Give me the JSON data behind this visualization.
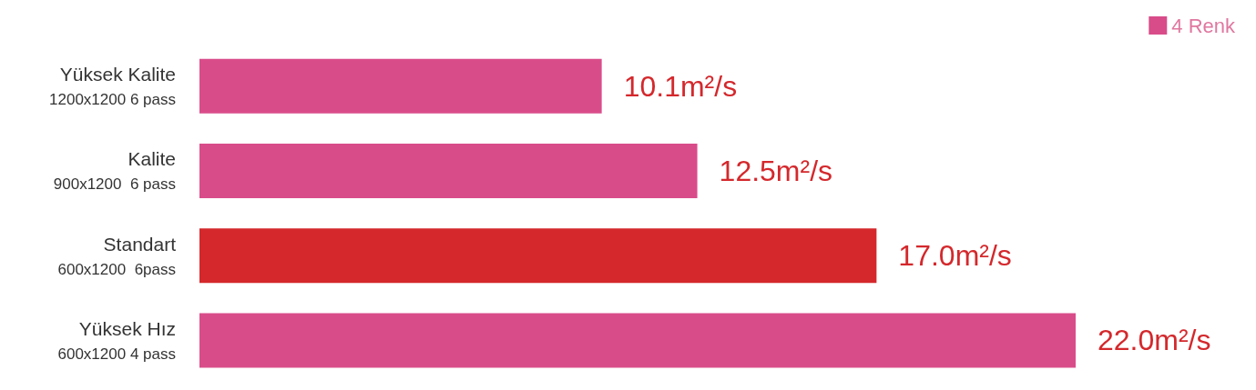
{
  "chart_data": {
    "type": "bar",
    "orientation": "horizontal",
    "categories": [
      "Yüksek Kalite\n1200x1200 6 pass",
      "Kalite\n900x1200  6 pass",
      "Standart\n600x1200  6pass",
      "Yüksek Hız\n600x1200 4 pass"
    ],
    "series": [
      {
        "name": "4 Renk",
        "color": "#d94c8a",
        "colors": [
          "#d94c8a",
          "#d94c8a",
          "#d4282c",
          "#d94c8a"
        ],
        "values": [
          10.1,
          12.5,
          17.0,
          22.0
        ],
        "value_labels": [
          "10.1m²/s",
          "12.5m²/s",
          "17.0m²/s",
          "22.0m²/s"
        ]
      }
    ],
    "legend": "top right",
    "grid": false
  }
}
